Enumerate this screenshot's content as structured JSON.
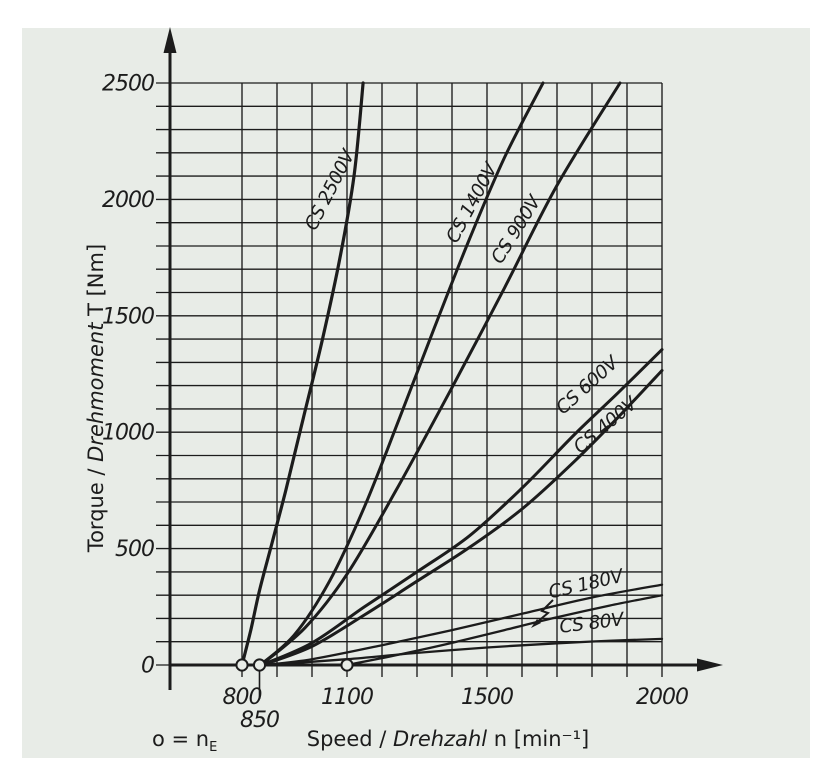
{
  "page": {
    "background": "#ffffff",
    "panel_color": "#e8ece7",
    "ink_color": "#1c1c1c"
  },
  "chart_data": {
    "type": "line",
    "title": "",
    "xlabel_parts": {
      "en": "Speed / ",
      "de": "Drehzahl",
      "rest": " n [min⁻¹]"
    },
    "ylabel_parts": {
      "en": "Torque / ",
      "de": "Drehmoment",
      "rest": " T [Nm]"
    },
    "xlim": [
      600,
      2060
    ],
    "ylim": [
      0,
      2500
    ],
    "x_grid_range": {
      "from": 800,
      "to": 2000,
      "step": 100
    },
    "y_grid_range": {
      "from": 0,
      "to": 2500,
      "step": 100
    },
    "grid": true,
    "legend_position": "on-curve-labels",
    "x_ticks": [
      {
        "label": "800",
        "n": 800,
        "staggered": false
      },
      {
        "label": "850",
        "n": 850,
        "staggered": true
      },
      {
        "label": "1100",
        "n": 1100,
        "staggered": false
      },
      {
        "label": "1500",
        "n": 1500,
        "staggered": false
      },
      {
        "label": "2000",
        "n": 2000,
        "staggered": false
      }
    ],
    "y_ticks": [
      {
        "label": "0",
        "T": 0
      },
      {
        "label": "500",
        "T": 500
      },
      {
        "label": "1000",
        "T": 1000
      },
      {
        "label": "1500",
        "T": 1500
      },
      {
        "label": "2000",
        "T": 2000
      },
      {
        "label": "2500",
        "T": 2500
      }
    ],
    "engagement_note": {
      "prefix": "o = n",
      "sub": "E"
    },
    "engagement_speeds_min1": [
      800,
      850,
      1100
    ],
    "series": [
      {
        "name": "CS 2500V",
        "engagement_speed": 800,
        "points": [
          [
            800,
            0
          ],
          [
            825,
            150
          ],
          [
            850,
            320
          ],
          [
            885,
            520
          ],
          [
            925,
            750
          ],
          [
            975,
            1060
          ],
          [
            1030,
            1400
          ],
          [
            1080,
            1750
          ],
          [
            1120,
            2100
          ],
          [
            1146,
            2500
          ]
        ]
      },
      {
        "name": "CS 1400V",
        "engagement_speed": 850,
        "points": [
          [
            852,
            0
          ],
          [
            950,
            130
          ],
          [
            1050,
            360
          ],
          [
            1150,
            680
          ],
          [
            1250,
            1060
          ],
          [
            1350,
            1450
          ],
          [
            1450,
            1830
          ],
          [
            1550,
            2180
          ],
          [
            1660,
            2500
          ]
        ]
      },
      {
        "name": "CS 900V",
        "engagement_speed": 850,
        "points": [
          [
            854,
            0
          ],
          [
            980,
            160
          ],
          [
            1100,
            390
          ],
          [
            1240,
            750
          ],
          [
            1410,
            1220
          ],
          [
            1550,
            1620
          ],
          [
            1700,
            2060
          ],
          [
            1880,
            2500
          ]
        ]
      },
      {
        "name": "CS 600V",
        "engagement_speed": 850,
        "points": [
          [
            856,
            0
          ],
          [
            1000,
            95
          ],
          [
            1150,
            250
          ],
          [
            1300,
            400
          ],
          [
            1450,
            555
          ],
          [
            1600,
            760
          ],
          [
            1750,
            990
          ],
          [
            1875,
            1170
          ],
          [
            2000,
            1355
          ]
        ]
      },
      {
        "name": "CS 400V",
        "engagement_speed": 850,
        "points": [
          [
            858,
            0
          ],
          [
            1000,
            80
          ],
          [
            1150,
            215
          ],
          [
            1300,
            360
          ],
          [
            1450,
            505
          ],
          [
            1600,
            670
          ],
          [
            1750,
            875
          ],
          [
            1875,
            1065
          ],
          [
            2000,
            1265
          ]
        ]
      },
      {
        "name": "CS 180V",
        "engagement_speed": 850,
        "points": [
          [
            860,
            0
          ],
          [
            1000,
            25
          ],
          [
            1200,
            85
          ],
          [
            1400,
            150
          ],
          [
            1600,
            220
          ],
          [
            1800,
            290
          ],
          [
            2000,
            345
          ]
        ]
      },
      {
        "name": "",
        "engagement_speed": 1100,
        "points": [
          [
            1100,
            0
          ],
          [
            1250,
            45
          ],
          [
            1400,
            95
          ],
          [
            1550,
            150
          ],
          [
            1700,
            205
          ],
          [
            1850,
            255
          ],
          [
            2000,
            300
          ]
        ]
      },
      {
        "name": "CS 80V",
        "engagement_speed": 850,
        "points": [
          [
            862,
            0
          ],
          [
            1100,
            25
          ],
          [
            1300,
            52
          ],
          [
            1500,
            75
          ],
          [
            1700,
            93
          ],
          [
            1850,
            104
          ],
          [
            2000,
            112
          ]
        ]
      }
    ]
  }
}
